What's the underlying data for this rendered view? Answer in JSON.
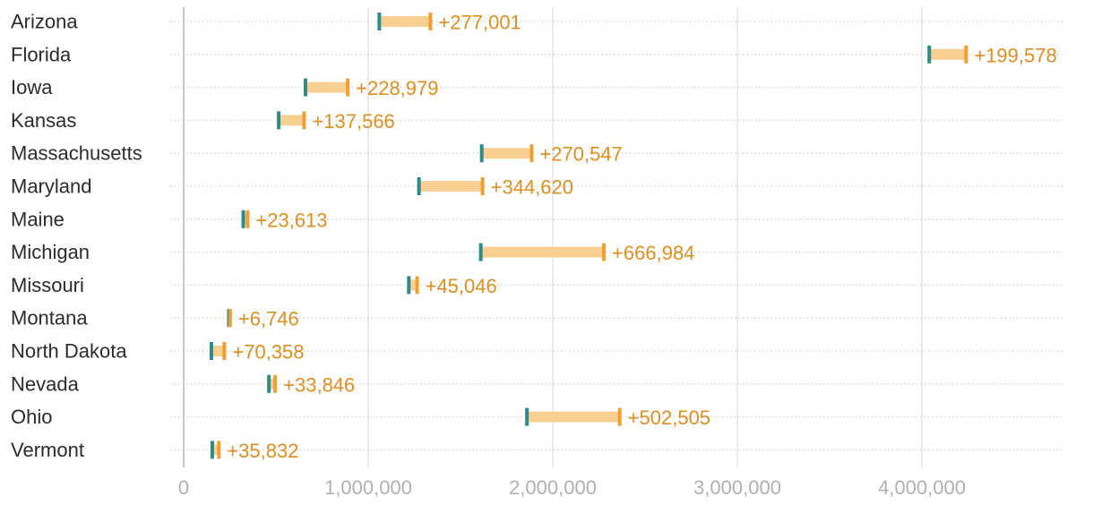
{
  "chart_data": {
    "type": "dumbbell",
    "title": "",
    "xlabel": "",
    "ylabel": "",
    "xlim": [
      0,
      4700000
    ],
    "x_ticks": [
      0,
      1000000,
      2000000,
      3000000,
      4000000
    ],
    "x_tick_labels": [
      "0",
      "1,000,000",
      "2,000,000",
      "3,000,000",
      "4,000,000"
    ],
    "grid": "vertical",
    "colors": {
      "start": "#2e8b8b",
      "end": "#f0a030",
      "bar": "#f9cf94",
      "delta_text": "#e08e1e",
      "grid": "#e3e3e3",
      "row_line": "#d5d5d5",
      "zero_line": "#c8c8c8"
    },
    "series": [
      {
        "name": "start"
      },
      {
        "name": "end"
      }
    ],
    "rows": [
      {
        "label": "Arizona",
        "start": 1060000,
        "end": 1337001,
        "delta": "+277,001"
      },
      {
        "label": "Florida",
        "start": 4040000,
        "end": 4239578,
        "delta": "+199,578"
      },
      {
        "label": "Iowa",
        "start": 660000,
        "end": 888979,
        "delta": "+228,979"
      },
      {
        "label": "Kansas",
        "start": 515000,
        "end": 652566,
        "delta": "+137,566"
      },
      {
        "label": "Massachusetts",
        "start": 1615000,
        "end": 1885547,
        "delta": "+270,547"
      },
      {
        "label": "Maryland",
        "start": 1275000,
        "end": 1619620,
        "delta": "+344,620"
      },
      {
        "label": "Maine",
        "start": 323000,
        "end": 346613,
        "delta": "+23,613"
      },
      {
        "label": "Michigan",
        "start": 1610000,
        "end": 2276984,
        "delta": "+666,984"
      },
      {
        "label": "Missouri",
        "start": 1220000,
        "end": 1265046,
        "delta": "+45,046"
      },
      {
        "label": "Montana",
        "start": 245000,
        "end": 251746,
        "delta": "+6,746"
      },
      {
        "label": "North Dakota",
        "start": 150000,
        "end": 220358,
        "delta": "+70,358"
      },
      {
        "label": "Nevada",
        "start": 462000,
        "end": 495846,
        "delta": "+33,846"
      },
      {
        "label": "Ohio",
        "start": 1860000,
        "end": 2362505,
        "delta": "+502,505"
      },
      {
        "label": "Vermont",
        "start": 155000,
        "end": 190832,
        "delta": "+35,832"
      }
    ]
  }
}
